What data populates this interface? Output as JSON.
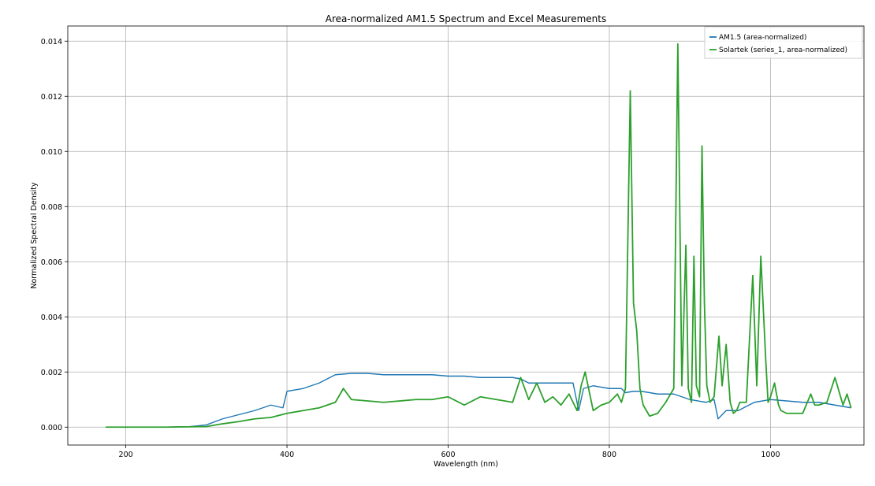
{
  "chart_data": {
    "type": "line",
    "title": "Area-normalized AM1.5 Spectrum and Excel Measurements",
    "xlabel": "Wavelength (nm)",
    "ylabel": "Normalized Spectral Density",
    "xlim": [
      128,
      1116
    ],
    "ylim": [
      -0.00065,
      0.01455
    ],
    "xticks": [
      200,
      400,
      600,
      800,
      1000
    ],
    "yticks": [
      0.0,
      0.002,
      0.004,
      0.006,
      0.008,
      0.01,
      0.012,
      0.014
    ],
    "xtick_labels": [
      "200",
      "400",
      "600",
      "800",
      "1000"
    ],
    "ytick_labels": [
      "0.000",
      "0.002",
      "0.004",
      "0.006",
      "0.008",
      "0.010",
      "0.012",
      "0.014"
    ],
    "grid": true,
    "legend_position": "top-right",
    "series": [
      {
        "name": "AM1.5 (area-normalized)",
        "color": "#1f77b4",
        "x": [
          175,
          250,
          280,
          300,
          320,
          340,
          360,
          380,
          395,
          400,
          420,
          440,
          460,
          480,
          500,
          520,
          540,
          560,
          580,
          600,
          620,
          640,
          660,
          680,
          690,
          700,
          720,
          740,
          755,
          762,
          768,
          780,
          800,
          815,
          820,
          830,
          840,
          860,
          880,
          900,
          920,
          930,
          935,
          945,
          960,
          980,
          1000,
          1020,
          1040,
          1060,
          1080,
          1100
        ],
        "y": [
          0.0,
          0.0,
          2e-05,
          8e-05,
          0.0003,
          0.00045,
          0.0006,
          0.0008,
          0.0007,
          0.0013,
          0.0014,
          0.0016,
          0.0019,
          0.00195,
          0.00195,
          0.0019,
          0.0019,
          0.0019,
          0.0019,
          0.00185,
          0.00185,
          0.0018,
          0.0018,
          0.0018,
          0.00175,
          0.0016,
          0.0016,
          0.0016,
          0.0016,
          0.0006,
          0.0014,
          0.0015,
          0.0014,
          0.0014,
          0.00125,
          0.0013,
          0.0013,
          0.0012,
          0.0012,
          0.001,
          0.0009,
          0.001,
          0.0003,
          0.0006,
          0.0006,
          0.0009,
          0.001,
          0.00095,
          0.0009,
          0.0009,
          0.0008,
          0.0007
        ]
      },
      {
        "name": "Solartek (series_1, area-normalized)",
        "color": "#2ca02c",
        "x": [
          175,
          250,
          300,
          320,
          340,
          360,
          380,
          400,
          420,
          440,
          460,
          470,
          480,
          500,
          520,
          540,
          560,
          580,
          600,
          620,
          640,
          660,
          680,
          690,
          700,
          710,
          720,
          730,
          740,
          750,
          760,
          765,
          770,
          780,
          790,
          800,
          810,
          815,
          820,
          826,
          830,
          834,
          838,
          842,
          850,
          860,
          870,
          880,
          885,
          890,
          895,
          898,
          902,
          905,
          908,
          912,
          915,
          918,
          921,
          925,
          930,
          936,
          940,
          945,
          950,
          954,
          958,
          962,
          970,
          978,
          983,
          988,
          994,
          997,
          1000,
          1005,
          1010,
          1013,
          1020,
          1030,
          1040,
          1050,
          1055,
          1060,
          1070,
          1080,
          1090,
          1095,
          1100
        ],
        "y": [
          0.0,
          0.0,
          2e-05,
          0.00012,
          0.0002,
          0.0003,
          0.00035,
          0.0005,
          0.0006,
          0.0007,
          0.0009,
          0.0014,
          0.001,
          0.00095,
          0.0009,
          0.00095,
          0.001,
          0.001,
          0.0011,
          0.0008,
          0.0011,
          0.001,
          0.0009,
          0.0018,
          0.001,
          0.0016,
          0.0009,
          0.0011,
          0.0008,
          0.0012,
          0.0006,
          0.0015,
          0.002,
          0.0006,
          0.0008,
          0.0009,
          0.0012,
          0.0009,
          0.0014,
          0.0122,
          0.0045,
          0.0035,
          0.0014,
          0.0008,
          0.0004,
          0.0005,
          0.0009,
          0.0014,
          0.0139,
          0.0015,
          0.0066,
          0.0014,
          0.0009,
          0.0062,
          0.0015,
          0.0011,
          0.0102,
          0.0045,
          0.0015,
          0.0009,
          0.0011,
          0.0033,
          0.0015,
          0.003,
          0.0009,
          0.0005,
          0.0006,
          0.0009,
          0.0009,
          0.0055,
          0.0015,
          0.0062,
          0.0025,
          0.0009,
          0.0011,
          0.0016,
          0.0008,
          0.0006,
          0.0005,
          0.0005,
          0.0005,
          0.0012,
          0.0008,
          0.0008,
          0.0009,
          0.0018,
          0.0008,
          0.0012,
          0.0007
        ]
      }
    ]
  }
}
